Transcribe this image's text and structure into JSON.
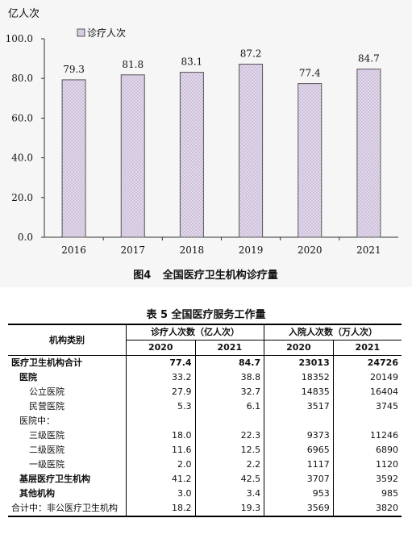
{
  "chart_data": {
    "type": "bar",
    "unit_label": "亿人次",
    "categories": [
      "2016",
      "2017",
      "2018",
      "2019",
      "2020",
      "2021"
    ],
    "series": [
      {
        "name": "诊疗人次",
        "values": [
          79.3,
          81.8,
          83.1,
          87.2,
          77.4,
          84.7
        ]
      }
    ],
    "data_labels": [
      "79.3",
      "81.8",
      "83.1",
      "87.2",
      "77.4",
      "84.7"
    ],
    "y_ticks": [
      "0.0",
      "20.0",
      "40.0",
      "60.0",
      "80.0",
      "100.0"
    ],
    "ylim": [
      0,
      100
    ],
    "legend_position": "top-left",
    "bar_fill": "#cfc0dc",
    "bar_stroke": "#555555",
    "caption_prefix": "图4",
    "caption": "全国医疗卫生机构诊疗量"
  },
  "table": {
    "title": "表 5   全国医疗服务工作量",
    "col_category": "机构类别",
    "group1": "诊疗人次数（亿人次）",
    "group2": "入院人次数（万人次）",
    "years": [
      "2020",
      "2021",
      "2020",
      "2021"
    ],
    "rows": [
      {
        "label": "医疗卫生机构合计",
        "values": [
          "77.4",
          "84.7",
          "23013",
          "24726"
        ]
      },
      {
        "label": "医院",
        "values": [
          "33.2",
          "38.8",
          "18352",
          "20149"
        ]
      },
      {
        "label": "公立医院",
        "values": [
          "27.9",
          "32.7",
          "14835",
          "16404"
        ]
      },
      {
        "label": "民营医院",
        "values": [
          "5.3",
          "6.1",
          "3517",
          "3745"
        ]
      },
      {
        "label": "医院中：",
        "values": [
          "",
          "",
          "",
          ""
        ]
      },
      {
        "label": "三级医院",
        "values": [
          "18.0",
          "22.3",
          "9373",
          "11246"
        ]
      },
      {
        "label": "二级医院",
        "values": [
          "11.6",
          "12.5",
          "6965",
          "6890"
        ]
      },
      {
        "label": "一级医院",
        "values": [
          "2.0",
          "2.2",
          "1117",
          "1120"
        ]
      },
      {
        "label": "基层医疗卫生机构",
        "values": [
          "41.2",
          "42.5",
          "3707",
          "3592"
        ]
      },
      {
        "label": "其他机构",
        "values": [
          "3.0",
          "3.4",
          "953",
          "985"
        ]
      },
      {
        "label": "合计中：非公医疗卫生机构",
        "values": [
          "18.2",
          "19.3",
          "3569",
          "3820"
        ]
      }
    ]
  }
}
